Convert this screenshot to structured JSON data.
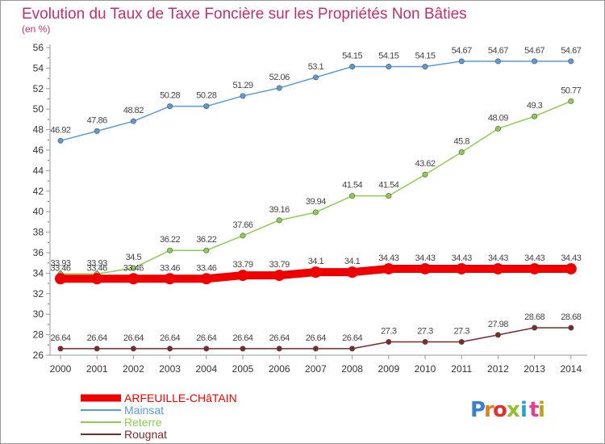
{
  "chart_data": {
    "type": "line",
    "title": "Evolution du Taux de Taxe Foncière sur les Propriétés Non Bâties",
    "subtitle": "(en %)",
    "xlabel": "",
    "ylabel": "",
    "categories": [
      "2000",
      "2001",
      "2002",
      "2003",
      "2004",
      "2005",
      "2006",
      "2007",
      "2008",
      "2009",
      "2010",
      "2011",
      "2012",
      "2013",
      "2014"
    ],
    "ylim": [
      26,
      56
    ],
    "yticks": [
      "26",
      "28",
      "30",
      "32",
      "34",
      "36",
      "38",
      "40",
      "42",
      "44",
      "46",
      "48",
      "50",
      "52",
      "54",
      "56"
    ],
    "grid": false,
    "legend_position": "bottom-left",
    "series": [
      {
        "name": "ARFEUILLE-CHâTAIN",
        "color": "#ee0000",
        "values": [
          33.46,
          33.46,
          33.46,
          33.46,
          33.46,
          33.79,
          33.79,
          34.1,
          34.1,
          34.43,
          34.43,
          34.43,
          34.43,
          34.43,
          34.43
        ],
        "labels": [
          "33.46",
          "33.46",
          "33.46",
          "33.46",
          "33.46",
          "33.79",
          "33.79",
          "34.1",
          "34.1",
          "34.43",
          "34.43",
          "34.43",
          "34.43",
          "34.43",
          "34.43"
        ]
      },
      {
        "name": "Mainsat",
        "color": "#5b9bd5",
        "values": [
          46.92,
          47.86,
          48.82,
          50.28,
          50.28,
          51.29,
          52.06,
          53.1,
          54.15,
          54.15,
          54.15,
          54.67,
          54.67,
          54.67,
          54.67
        ],
        "labels": [
          "46.92",
          "47.86",
          "48.82",
          "50.28",
          "50.28",
          "51.29",
          "52.06",
          "53.1",
          "54.15",
          "54.15",
          "54.15",
          "54.67",
          "54.67",
          "54.67",
          "54.67"
        ]
      },
      {
        "name": "Reterre",
        "color": "#8ccc50",
        "values": [
          33.93,
          33.93,
          34.5,
          36.22,
          36.22,
          37.66,
          39.16,
          39.94,
          41.54,
          41.54,
          43.62,
          45.8,
          48.09,
          49.3,
          50.77
        ],
        "labels": [
          "33.93",
          "33.93",
          "34.5",
          "36.22",
          "36.22",
          "37.66",
          "39.16",
          "39.94",
          "41.54",
          "41.54",
          "43.62",
          "45.8",
          "48.09",
          "49.3",
          "50.77"
        ]
      },
      {
        "name": "Rougnat",
        "color": "#7a2a2a",
        "values": [
          26.64,
          26.64,
          26.64,
          26.64,
          26.64,
          26.64,
          26.64,
          26.64,
          26.64,
          27.3,
          27.3,
          27.3,
          27.98,
          28.68,
          28.68
        ],
        "labels": [
          "26.64",
          "26.64",
          "26.64",
          "26.64",
          "26.64",
          "26.64",
          "26.64",
          "26.64",
          "26.64",
          "27.3",
          "27.3",
          "27.3",
          "27.98",
          "28.68",
          "28.68"
        ]
      }
    ]
  },
  "logo": {
    "letters": [
      "P",
      "r",
      "o",
      "x",
      "i",
      "t",
      "i"
    ],
    "colors": [
      "#3a7fd0",
      "#e08020",
      "#e03030",
      "#90c030",
      "#2a9fd0",
      "#e04090",
      "#c0a020"
    ]
  }
}
